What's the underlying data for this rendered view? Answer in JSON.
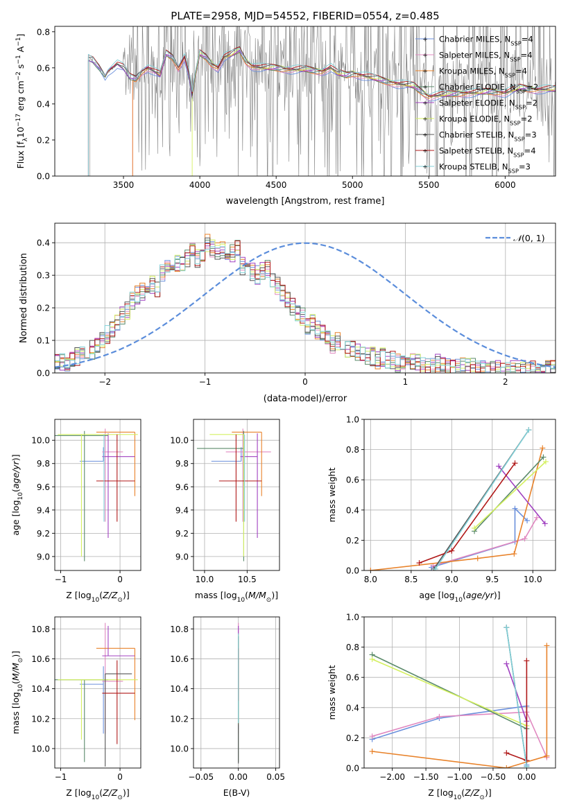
{
  "chart_data": [
    {
      "id": "spectrum",
      "type": "line",
      "title": "PLATE=2958, MJD=54552, FIBERID=0554, z=0.485",
      "xlabel": "wavelength [Angstrom, rest frame]",
      "ylabel": "Flux [f_λ 10^-17 erg cm^-2 s^-1 A^-1]",
      "xlim": [
        3050,
        6330
      ],
      "ylim": [
        0,
        0.83
      ],
      "xticks": [
        3500,
        4000,
        4500,
        5000,
        5500,
        6000
      ],
      "yticks": [
        0.0,
        0.2,
        0.4,
        0.6,
        0.8
      ],
      "grid": false,
      "legend_position": "top-right",
      "series": [
        {
          "name": "Chabrier MILES, N_SSP=4",
          "color": "#6a8fdc"
        },
        {
          "name": "Salpeter MILES, N_SSP=4",
          "color": "#e088c0"
        },
        {
          "name": "Kroupa MILES, N_SSP=4",
          "color": "#e8822a"
        },
        {
          "name": "Chabrier ELODIE, N_SSP=2",
          "color": "#5a8a6a"
        },
        {
          "name": "Salpeter ELODIE, N_SSP=2",
          "color": "#a040c0"
        },
        {
          "name": "Kroupa ELODIE, N_SSP=2",
          "color": "#d4f060"
        },
        {
          "name": "Chabrier STELIB, N_SSP=3",
          "color": "#555555"
        },
        {
          "name": "Salpeter STELIB, N_SSP=4",
          "color": "#b01818"
        },
        {
          "name": "Kroupa STELIB, N_SSP=3",
          "color": "#80d0d8"
        }
      ],
      "model_continuum": {
        "x": [
          3250,
          3270,
          3300,
          3340,
          3380,
          3400,
          3430,
          3460,
          3500,
          3540,
          3580,
          3620,
          3660,
          3700,
          3740,
          3780,
          3820,
          3860,
          3900,
          3930,
          3950,
          3970,
          4000,
          4040,
          4080,
          4120,
          4160,
          4200,
          4260,
          4300,
          4340,
          4400,
          4500,
          4600,
          4700,
          4800,
          4860,
          4900,
          4960,
          5000,
          5100,
          5200,
          5300,
          5400,
          5500,
          5600,
          5700,
          5800,
          5900,
          6000,
          6100,
          6200
        ],
        "y": [
          0.62,
          0.65,
          0.64,
          0.6,
          0.55,
          0.58,
          0.6,
          0.62,
          0.6,
          0.55,
          0.54,
          0.58,
          0.6,
          0.58,
          0.56,
          0.68,
          0.66,
          0.6,
          0.66,
          0.56,
          0.44,
          0.55,
          0.68,
          0.66,
          0.62,
          0.6,
          0.66,
          0.67,
          0.7,
          0.64,
          0.61,
          0.6,
          0.6,
          0.59,
          0.59,
          0.58,
          0.6,
          0.57,
          0.56,
          0.57,
          0.55,
          0.53,
          0.51,
          0.5,
          0.44,
          0.45,
          0.46,
          0.46,
          0.47,
          0.46,
          0.49,
          0.48
        ]
      },
      "data_start": 3280
    },
    {
      "id": "residuals",
      "type": "histogram",
      "xlabel": "(data-model)/error",
      "ylabel": "Normed distribution",
      "xlim": [
        -2.5,
        2.5
      ],
      "ylim": [
        0,
        0.46
      ],
      "xticks": [
        -2,
        -1,
        0,
        1,
        2
      ],
      "yticks": [
        0.0,
        0.1,
        0.2,
        0.3,
        0.4
      ],
      "grid": true,
      "legend": "N(0,1)",
      "legend_position": "top-right",
      "bin_width": 0.1,
      "bin_start": -2.5,
      "base_counts": [
        0.03,
        0.03,
        0.03,
        0.04,
        0.05,
        0.05,
        0.06,
        0.07,
        0.08,
        0.1,
        0.12,
        0.14,
        0.16,
        0.18,
        0.19,
        0.22,
        0.24,
        0.25,
        0.25,
        0.27,
        0.26,
        0.31,
        0.33,
        0.33,
        0.34,
        0.33,
        0.35,
        0.37,
        0.35,
        0.37,
        0.4,
        0.38,
        0.37,
        0.38,
        0.35,
        0.37,
        0.38,
        0.33,
        0.34,
        0.31,
        0.3,
        0.31,
        0.32,
        0.29,
        0.27,
        0.24,
        0.22,
        0.2,
        0.18,
        0.17,
        0.14,
        0.15,
        0.13,
        0.12,
        0.11,
        0.09,
        0.1,
        0.08,
        0.07,
        0.08,
        0.06,
        0.06,
        0.05,
        0.05,
        0.04,
        0.05,
        0.04,
        0.04,
        0.03,
        0.04,
        0.03,
        0.03,
        0.03,
        0.02,
        0.02,
        0.02,
        0.03,
        0.02,
        0.02,
        0.02,
        0.02,
        0.02,
        0.02,
        0.02,
        0.01,
        0.01,
        0.01,
        0.01,
        0.01,
        0.01,
        0.01,
        0.01,
        0.01,
        0.01,
        0.01,
        0.01,
        0.01,
        0.01,
        0.01,
        0.01
      ]
    },
    {
      "id": "age_vs_Z",
      "type": "errorbar",
      "xlabel": "Z [log10(Z/Z⊙)]",
      "ylabel": "age [log10(age/yr)]",
      "xlim": [
        -1.1,
        0.35
      ],
      "ylim": [
        8.88,
        10.18
      ],
      "xticks": [
        -1,
        0
      ],
      "yticks": [
        9.0,
        9.2,
        9.4,
        9.6,
        9.8,
        10.0
      ],
      "grid": true,
      "points": [
        {
          "x": -0.28,
          "y": 9.82,
          "xerr": [
            0.4,
            0.0
          ],
          "yerr": [
            0.0,
            0.12
          ],
          "color": "#6a8fdc"
        },
        {
          "x": -0.25,
          "y": 9.9,
          "xerr": [
            0.05,
            0.3
          ],
          "yerr": [
            0.6,
            0.2
          ],
          "color": "#e088c0"
        },
        {
          "x": 0.25,
          "y": 10.07,
          "xerr": [
            0.65,
            0.0
          ],
          "yerr": [
            0.55,
            0.0
          ],
          "color": "#e8822a"
        },
        {
          "x": -0.6,
          "y": 10.04,
          "xerr": [
            0.5,
            0.4
          ],
          "yerr": [
            1.08,
            0.04
          ],
          "color": "#5a8a6a"
        },
        {
          "x": -0.2,
          "y": 9.86,
          "xerr": [
            0.1,
            0.45
          ],
          "yerr": [
            0.7,
            0.2
          ],
          "color": "#a040c0"
        },
        {
          "x": -0.65,
          "y": 10.05,
          "xerr": [
            0.4,
            0.95
          ],
          "yerr": [
            1.05,
            0.0
          ],
          "color": "#d4f060"
        },
        {
          "x": -0.6,
          "y": 10.08,
          "xerr": [
            0.0,
            0.0
          ],
          "yerr": [
            0.0,
            0.0
          ],
          "color": "#555555"
        },
        {
          "x": -0.05,
          "y": 9.65,
          "xerr": [
            0.35,
            0.3
          ],
          "yerr": [
            0.35,
            0.4
          ],
          "color": "#b01818"
        },
        {
          "x": -0.27,
          "y": 9.95,
          "xerr": [
            0.0,
            0.0
          ],
          "yerr": [
            0.65,
            0.1
          ],
          "color": "#80d0d8"
        }
      ]
    },
    {
      "id": "age_vs_mass",
      "type": "errorbar",
      "xlabel": "mass [log10(M/M⊙)]",
      "ylabel": "",
      "xlim": [
        9.87,
        10.88
      ],
      "ylim": [
        8.88,
        10.18
      ],
      "xticks": [
        10.0,
        10.5
      ],
      "yticks": [
        9.0,
        9.2,
        9.4,
        9.6,
        9.8,
        10.0
      ],
      "grid": true,
      "points": [
        {
          "x": 10.43,
          "y": 9.82,
          "xerr": [
            0.35,
            0.0
          ],
          "yerr": [
            0.0,
            0.12
          ],
          "color": "#6a8fdc"
        },
        {
          "x": 10.45,
          "y": 9.9,
          "xerr": [
            0.2,
            0.33
          ],
          "yerr": [
            0.6,
            0.2
          ],
          "color": "#e088c0"
        },
        {
          "x": 10.67,
          "y": 10.07,
          "xerr": [
            0.35,
            0.0
          ],
          "yerr": [
            0.55,
            0.0
          ],
          "color": "#e8822a"
        },
        {
          "x": 10.46,
          "y": 9.93,
          "xerr": [
            0.55,
            0.0
          ],
          "yerr": [
            0.97,
            0.15
          ],
          "color": "#5a8a6a"
        },
        {
          "x": 10.62,
          "y": 9.86,
          "xerr": [
            0.2,
            0.0
          ],
          "yerr": [
            0.7,
            0.2
          ],
          "color": "#a040c0"
        },
        {
          "x": 10.46,
          "y": 10.05,
          "xerr": [
            0.4,
            0.0
          ],
          "yerr": [
            1.05,
            0.0
          ],
          "color": "#d4f060"
        },
        {
          "x": 10.46,
          "y": 10.1,
          "xerr": [
            0.0,
            0.0
          ],
          "yerr": [
            0.0,
            0.0
          ],
          "color": "#555555"
        },
        {
          "x": 10.37,
          "y": 9.65,
          "xerr": [
            0.2,
            0.3
          ],
          "yerr": [
            0.35,
            0.4
          ],
          "color": "#b01818"
        },
        {
          "x": 10.47,
          "y": 9.95,
          "xerr": [
            0.0,
            0.0
          ],
          "yerr": [
            0.65,
            0.1
          ],
          "color": "#80d0d8"
        }
      ]
    },
    {
      "id": "mass_weight_vs_age",
      "type": "line",
      "xlabel": "age [log10(age/yr)]",
      "ylabel": "mass weight",
      "xlim": [
        7.92,
        10.28
      ],
      "ylim": [
        0,
        1.0
      ],
      "xticks": [
        8.0,
        8.5,
        9.0,
        9.5,
        10.0
      ],
      "yticks": [
        0.0,
        0.2,
        0.4,
        0.6,
        0.8,
        1.0
      ],
      "grid": true,
      "series": [
        {
          "color": "#6a8fdc",
          "x": [
            8.75,
            9.78,
            9.78,
            9.93
          ],
          "y": [
            0.02,
            0.19,
            0.41,
            0.33
          ]
        },
        {
          "color": "#e088c0",
          "x": [
            8.77,
            9.9,
            10.05
          ],
          "y": [
            0.03,
            0.21,
            0.35
          ]
        },
        {
          "color": "#e8822a",
          "x": [
            8.0,
            9.32,
            9.77,
            10.12
          ],
          "y": [
            0.0,
            0.08,
            0.11,
            0.81
          ]
        },
        {
          "color": "#5a8a6a",
          "x": [
            9.28,
            10.13
          ],
          "y": [
            0.26,
            0.75
          ]
        },
        {
          "color": "#a040c0",
          "x": [
            9.58,
            10.15
          ],
          "y": [
            0.69,
            0.31
          ]
        },
        {
          "color": "#d4f060",
          "x": [
            9.28,
            10.16
          ],
          "y": [
            0.28,
            0.72
          ]
        },
        {
          "color": "#555555",
          "x": [
            8.78,
            9.95
          ],
          "y": [
            0.01,
            0.93
          ]
        },
        {
          "color": "#b01818",
          "x": [
            8.6,
            9.0,
            9.78
          ],
          "y": [
            0.05,
            0.13,
            0.71
          ]
        },
        {
          "color": "#80d0d8",
          "x": [
            8.8,
            9.95
          ],
          "y": [
            0.01,
            0.93
          ]
        }
      ]
    },
    {
      "id": "mass_vs_Z",
      "type": "errorbar",
      "xlabel": "Z [log10(Z/Z⊙)]",
      "ylabel": "mass [log10(M/M⊙)]",
      "xlim": [
        -1.1,
        0.35
      ],
      "ylim": [
        9.87,
        10.88
      ],
      "xticks": [
        -1,
        0
      ],
      "yticks": [
        10.0,
        10.2,
        10.4,
        10.6,
        10.8
      ],
      "grid": true,
      "points": [
        {
          "x": -0.28,
          "y": 10.43,
          "xerr": [
            0.4,
            0.0
          ],
          "yerr": [
            0.33,
            0.12
          ],
          "color": "#6a8fdc"
        },
        {
          "x": -0.25,
          "y": 10.45,
          "xerr": [
            0.05,
            0.3
          ],
          "yerr": [
            0.35,
            0.39
          ],
          "color": "#e088c0"
        },
        {
          "x": 0.25,
          "y": 10.67,
          "xerr": [
            0.65,
            0.0
          ],
          "yerr": [
            0.48,
            0.0
          ],
          "color": "#e8822a"
        },
        {
          "x": -0.6,
          "y": 10.46,
          "xerr": [
            0.5,
            0.4
          ],
          "yerr": [
            0.55,
            0.0
          ],
          "color": "#5a8a6a"
        },
        {
          "x": -0.2,
          "y": 10.62,
          "xerr": [
            0.1,
            0.45
          ],
          "yerr": [
            0.0,
            0.2
          ],
          "color": "#a040c0"
        },
        {
          "x": -0.65,
          "y": 10.46,
          "xerr": [
            0.4,
            0.95
          ],
          "yerr": [
            0.4,
            0.0
          ],
          "color": "#d4f060"
        },
        {
          "x": -0.25,
          "y": 10.5,
          "xerr": [
            0.0,
            0.45
          ],
          "yerr": [
            0.62,
            0.0
          ],
          "color": "#555555"
        },
        {
          "x": -0.05,
          "y": 10.37,
          "xerr": [
            0.25,
            0.3
          ],
          "yerr": [
            0.34,
            0.22
          ],
          "color": "#b01818"
        },
        {
          "x": -0.27,
          "y": 10.47,
          "xerr": [
            0.0,
            0.0
          ],
          "yerr": [
            0.0,
            0.0
          ],
          "color": "#80d0d8"
        }
      ]
    },
    {
      "id": "mass_vs_ebv",
      "type": "errorbar",
      "xlabel": "E(B-V)",
      "ylabel": "",
      "xlim": [
        -0.06,
        0.055
      ],
      "ylim": [
        9.87,
        10.88
      ],
      "xticks": [
        -0.05,
        0.0,
        0.05
      ],
      "yticks": [
        10.0,
        10.2,
        10.4,
        10.6,
        10.8
      ],
      "grid": true,
      "points": [
        {
          "x": 0.0,
          "y": 10.43,
          "xerr": [
            0,
            0
          ],
          "yerr": [
            0.3,
            0.3
          ],
          "color": "#6a8fdc"
        },
        {
          "x": 0.0,
          "y": 10.45,
          "xerr": [
            0,
            0
          ],
          "yerr": [
            0.35,
            0.39
          ],
          "color": "#e088c0"
        },
        {
          "x": 0.0,
          "y": 10.67,
          "xerr": [
            0,
            0
          ],
          "yerr": [
            0.1,
            0.05
          ],
          "color": "#e8822a"
        },
        {
          "x": 0.0,
          "y": 10.46,
          "xerr": [
            0,
            0
          ],
          "yerr": [
            0.55,
            0.2
          ],
          "color": "#5a8a6a"
        },
        {
          "x": 0.0,
          "y": 10.62,
          "xerr": [
            0,
            0
          ],
          "yerr": [
            0.2,
            0.2
          ],
          "color": "#a040c0"
        },
        {
          "x": 0.0,
          "y": 10.46,
          "xerr": [
            0,
            0
          ],
          "yerr": [
            0.3,
            0.3
          ],
          "color": "#d4f060"
        },
        {
          "x": 0.0,
          "y": 10.5,
          "xerr": [
            0,
            0
          ],
          "yerr": [
            0.6,
            0.25
          ],
          "color": "#555555"
        },
        {
          "x": 0.0,
          "y": 10.37,
          "xerr": [
            0,
            0
          ],
          "yerr": [
            0.05,
            0.3
          ],
          "color": "#b01818"
        },
        {
          "x": 0.0,
          "y": 10.47,
          "xerr": [
            0,
            0
          ],
          "yerr": [
            0.3,
            0.3
          ],
          "color": "#80d0d8"
        }
      ]
    },
    {
      "id": "mass_weight_vs_Z",
      "type": "line",
      "xlabel": "Z [log10(Z/Z⊙)]",
      "ylabel": "mass weight",
      "xlim": [
        -2.42,
        0.43
      ],
      "ylim": [
        0,
        1.0
      ],
      "xticks": [
        -2.0,
        -1.5,
        -1.0,
        -0.5,
        0.0
      ],
      "yticks": [
        0.0,
        0.2,
        0.4,
        0.6,
        0.8,
        1.0
      ],
      "grid": true,
      "series": [
        {
          "color": "#6a8fdc",
          "x": [
            -2.3,
            -1.3,
            0.0,
            0.0
          ],
          "y": [
            0.19,
            0.33,
            0.41,
            0.02
          ]
        },
        {
          "color": "#e088c0",
          "x": [
            -2.3,
            -1.3,
            0.0,
            0.3
          ],
          "y": [
            0.21,
            0.34,
            0.37,
            0.07
          ]
        },
        {
          "color": "#e8822a",
          "x": [
            -2.3,
            -0.3,
            0.3,
            0.3
          ],
          "y": [
            0.11,
            0.0,
            0.08,
            0.81
          ]
        },
        {
          "color": "#5a8a6a",
          "x": [
            -2.3,
            0.0
          ],
          "y": [
            0.75,
            0.26
          ]
        },
        {
          "color": "#a040c0",
          "x": [
            -0.3,
            0.0
          ],
          "y": [
            0.69,
            0.31
          ]
        },
        {
          "color": "#d4f060",
          "x": [
            -2.3,
            0.0
          ],
          "y": [
            0.72,
            0.28
          ]
        },
        {
          "color": "#555555",
          "x": [
            -0.3,
            0.0
          ],
          "y": [
            0.93,
            0.01
          ]
        },
        {
          "color": "#b01818",
          "x": [
            -0.3,
            0.0,
            0.0
          ],
          "y": [
            0.1,
            0.05,
            0.71
          ]
        },
        {
          "color": "#80d0d8",
          "x": [
            -0.3,
            0.0
          ],
          "y": [
            0.93,
            0.01
          ]
        }
      ]
    }
  ]
}
